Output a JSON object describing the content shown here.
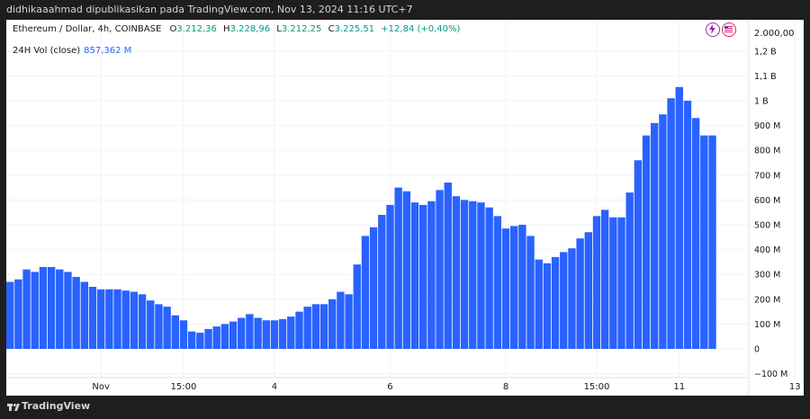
{
  "header": {
    "attribution": "didhikaaahmad dipublikasikan pada TradingView.com, Nov 13, 2024 11:16 UTC+7"
  },
  "legend": {
    "symbol": "Ethereum / Dollar, 4h, COINBASE",
    "open_label": "O",
    "open": "3.212,36",
    "high_label": "H",
    "high": "3.228,96",
    "low_label": "L",
    "low": "3.212,25",
    "close_label": "C",
    "close": "3.225,51",
    "change": "+12,84 (+0,40%)"
  },
  "indicator": {
    "name": "24H Vol (close)",
    "value": "857,362 M"
  },
  "price_scale_top": "2.000,00",
  "footer": {
    "brand": "TradingView"
  },
  "colors": {
    "bar": "#2962ff",
    "change": "#089981",
    "grid": "#f0f3fa",
    "text": "#131722"
  },
  "icons": [
    "lightning-icon",
    "us-flag-icon",
    "tradingview-logo-icon"
  ],
  "chart_data": {
    "type": "bar",
    "title": "24H Vol (close)",
    "ylabel": "",
    "xlabel": "",
    "ylim": [
      -100000000,
      1200000000
    ],
    "y_ticks": [
      {
        "v": 1200000000,
        "label": "1,2 B"
      },
      {
        "v": 1100000000,
        "label": "1,1 B"
      },
      {
        "v": 1000000000,
        "label": "1 B"
      },
      {
        "v": 900000000,
        "label": "900 M"
      },
      {
        "v": 800000000,
        "label": "800 M"
      },
      {
        "v": 700000000,
        "label": "700 M"
      },
      {
        "v": 600000000,
        "label": "600 M"
      },
      {
        "v": 500000000,
        "label": "500 M"
      },
      {
        "v": 400000000,
        "label": "400 M"
      },
      {
        "v": 300000000,
        "label": "300 M"
      },
      {
        "v": 200000000,
        "label": "200 M"
      },
      {
        "v": 100000000,
        "label": "100 M"
      },
      {
        "v": 0,
        "label": "0"
      },
      {
        "v": -100000000,
        "label": "−100 M"
      }
    ],
    "x_ticks": [
      {
        "i": 11,
        "label": "Nov"
      },
      {
        "i": 21,
        "label": "15:00"
      },
      {
        "i": 32,
        "label": "4"
      },
      {
        "i": 46,
        "label": "6"
      },
      {
        "i": 60,
        "label": "8"
      },
      {
        "i": 71,
        "label": "15:00"
      },
      {
        "i": 81,
        "label": "11"
      },
      {
        "i": 95,
        "label": "13"
      }
    ],
    "values_millions": [
      270,
      280,
      320,
      310,
      330,
      330,
      320,
      310,
      290,
      270,
      250,
      240,
      240,
      240,
      235,
      230,
      220,
      195,
      180,
      170,
      135,
      115,
      70,
      65,
      80,
      90,
      100,
      110,
      125,
      140,
      125,
      115,
      115,
      120,
      130,
      150,
      170,
      180,
      180,
      200,
      230,
      220,
      340,
      455,
      490,
      540,
      580,
      650,
      635,
      590,
      580,
      595,
      640,
      670,
      615,
      600,
      595,
      590,
      570,
      535,
      485,
      495,
      500,
      455,
      360,
      345,
      370,
      390,
      405,
      445,
      470,
      535,
      560,
      530,
      530,
      630,
      760,
      860,
      910,
      945,
      1010,
      1055,
      1000,
      930,
      860,
      860
    ]
  }
}
